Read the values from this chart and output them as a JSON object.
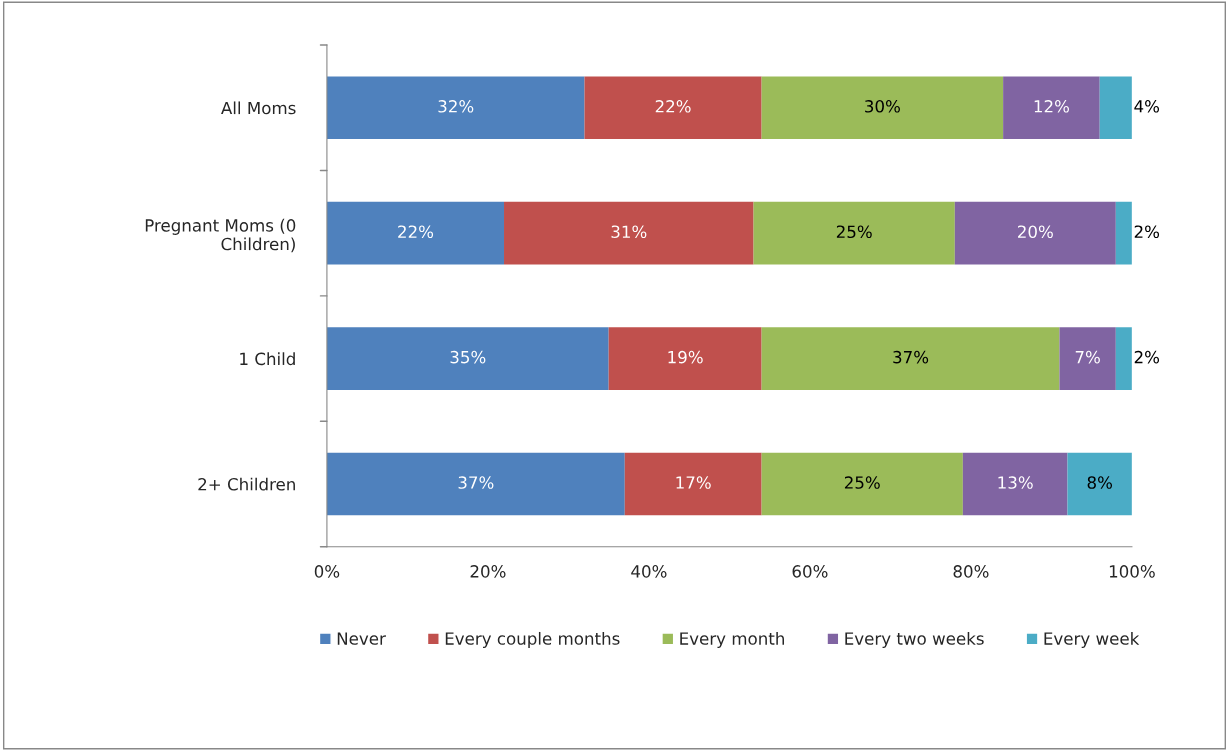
{
  "chart_data": {
    "type": "bar",
    "orientation": "horizontal",
    "stacked": true,
    "categories": [
      "All Moms",
      "Pregnant Moms (0\nChildren)",
      "1 Child",
      "2+ Children"
    ],
    "series": [
      {
        "name": "Never",
        "color": "#4f81bd",
        "values": [
          32,
          22,
          35,
          37
        ],
        "value_labels": [
          "32%",
          "22%",
          "35%",
          "37%"
        ]
      },
      {
        "name": "Every couple months",
        "color": "#c0504d",
        "values": [
          22,
          31,
          19,
          17
        ],
        "value_labels": [
          "22%",
          "31%",
          "19%",
          "17%"
        ]
      },
      {
        "name": "Every month",
        "color": "#9bbb59",
        "values": [
          30,
          25,
          37,
          25
        ],
        "value_labels": [
          "30%",
          "25%",
          "37%",
          "25%"
        ]
      },
      {
        "name": "Every two weeks",
        "color": "#8064a2",
        "values": [
          12,
          20,
          7,
          13
        ],
        "value_labels": [
          "12%",
          "20%",
          "7%",
          "13%"
        ]
      },
      {
        "name": "Every week",
        "color": "#4bacc6",
        "values": [
          4,
          2,
          2,
          8
        ],
        "value_labels": [
          "4%",
          "2%",
          "2%",
          "8%"
        ]
      }
    ],
    "xlim": [
      0,
      100
    ],
    "xticks": [
      {
        "value": 0,
        "label": "0%"
      },
      {
        "value": 20,
        "label": "20%"
      },
      {
        "value": 40,
        "label": "40%"
      },
      {
        "value": 60,
        "label": "60%"
      },
      {
        "value": 80,
        "label": "80%"
      },
      {
        "value": 100,
        "label": "100%"
      }
    ],
    "grid": false,
    "legend": "bottom"
  }
}
